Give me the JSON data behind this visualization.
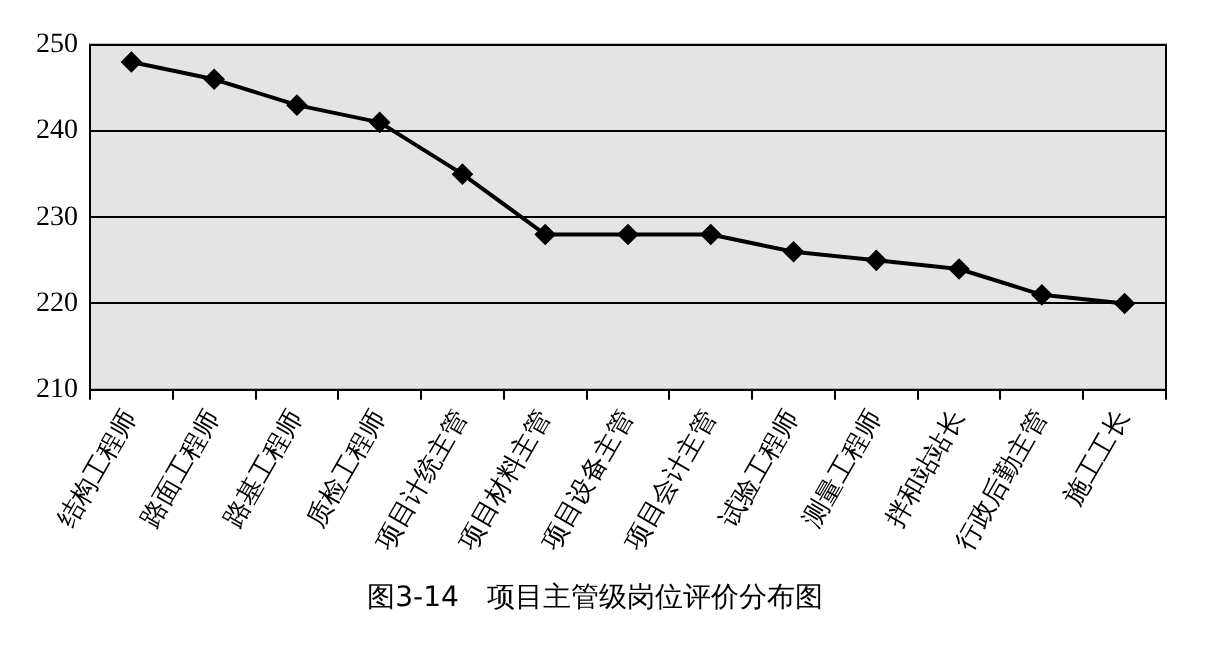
{
  "chart_data": {
    "type": "line",
    "title": "图3-14　项目主管级岗位评价分布图",
    "categories": [
      "结构工程师",
      "路面工程师",
      "路基工程师",
      "质检工程师",
      "项目计统主管",
      "项目材料主管",
      "项目设备主管",
      "项目会计主管",
      "试验工程师",
      "测量工程师",
      "拌和站站长",
      "行政后勤主管",
      "施工工长"
    ],
    "series": [
      {
        "color": "#000000",
        "values": [
          248,
          246,
          243,
          241,
          235,
          228,
          228,
          228,
          226,
          225,
          224,
          221,
          220
        ]
      }
    ],
    "ylim": [
      210,
      250
    ],
    "yticks": [
      210,
      220,
      230,
      240,
      250
    ],
    "grid": "y",
    "marker": "diamond",
    "line_style": "solid",
    "legend": false
  }
}
